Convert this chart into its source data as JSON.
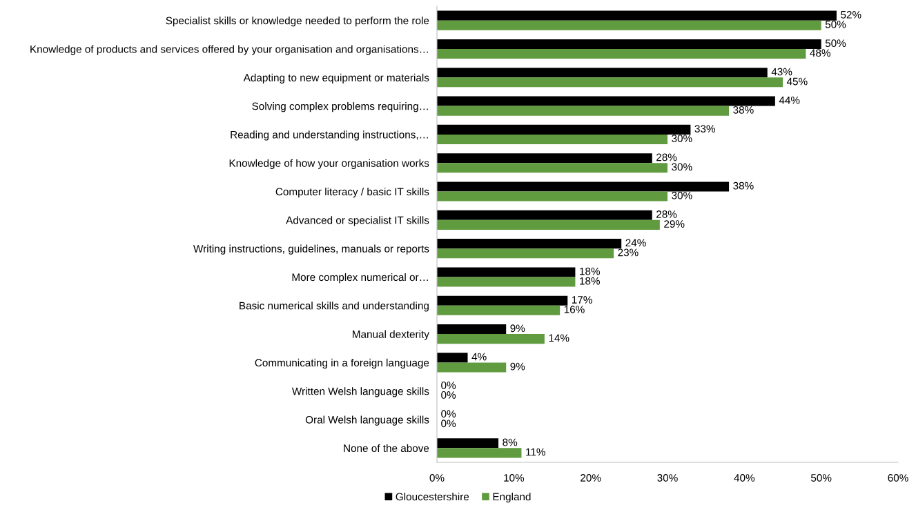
{
  "chart_data": {
    "type": "bar",
    "orientation": "horizontal",
    "categories": [
      "Specialist skills or knowledge needed to perform the role",
      "Knowledge of products and services offered by your organisation and organisations…",
      "Adapting to new equipment or materials",
      "Solving complex problems requiring…",
      "Reading and understanding instructions,…",
      "Knowledge of how your organisation works",
      "Computer literacy / basic IT skills",
      "Advanced or specialist IT skills",
      "Writing instructions, guidelines, manuals or reports",
      "More complex numerical or…",
      "Basic numerical skills and understanding",
      "Manual dexterity",
      "Communicating in a foreign language",
      "Written Welsh language skills",
      "Oral Welsh language skills",
      "None of the above"
    ],
    "series": [
      {
        "name": "Gloucestershire",
        "color": "#000000",
        "values": [
          52,
          50,
          43,
          44,
          33,
          28,
          38,
          28,
          24,
          18,
          17,
          9,
          4,
          0,
          0,
          8
        ],
        "value_labels": [
          "52%",
          "50%",
          "43%",
          "44%",
          "33%",
          "28%",
          "38%",
          "28%",
          "24%",
          "18%",
          "17%",
          "9%",
          "4%",
          "0%",
          "0%",
          "8%"
        ]
      },
      {
        "name": "England",
        "color": "#619b40",
        "values": [
          50,
          48,
          45,
          38,
          30,
          30,
          30,
          29,
          23,
          18,
          16,
          14,
          9,
          0,
          0,
          11
        ],
        "value_labels": [
          "50%",
          "48%",
          "45%",
          "38%",
          "30%",
          "30%",
          "30%",
          "29%",
          "23%",
          "18%",
          "16%",
          "14%",
          "9%",
          "0%",
          "0%",
          "11%"
        ]
      }
    ],
    "xlim": [
      0,
      60
    ],
    "xticks": [
      {
        "value": 0,
        "label": "0%"
      },
      {
        "value": 10,
        "label": "10%"
      },
      {
        "value": 20,
        "label": "20%"
      },
      {
        "value": 30,
        "label": "30%"
      },
      {
        "value": 40,
        "label": "40%"
      },
      {
        "value": 50,
        "label": "50%"
      },
      {
        "value": 60,
        "label": "60%"
      }
    ],
    "legend": "bottom"
  }
}
